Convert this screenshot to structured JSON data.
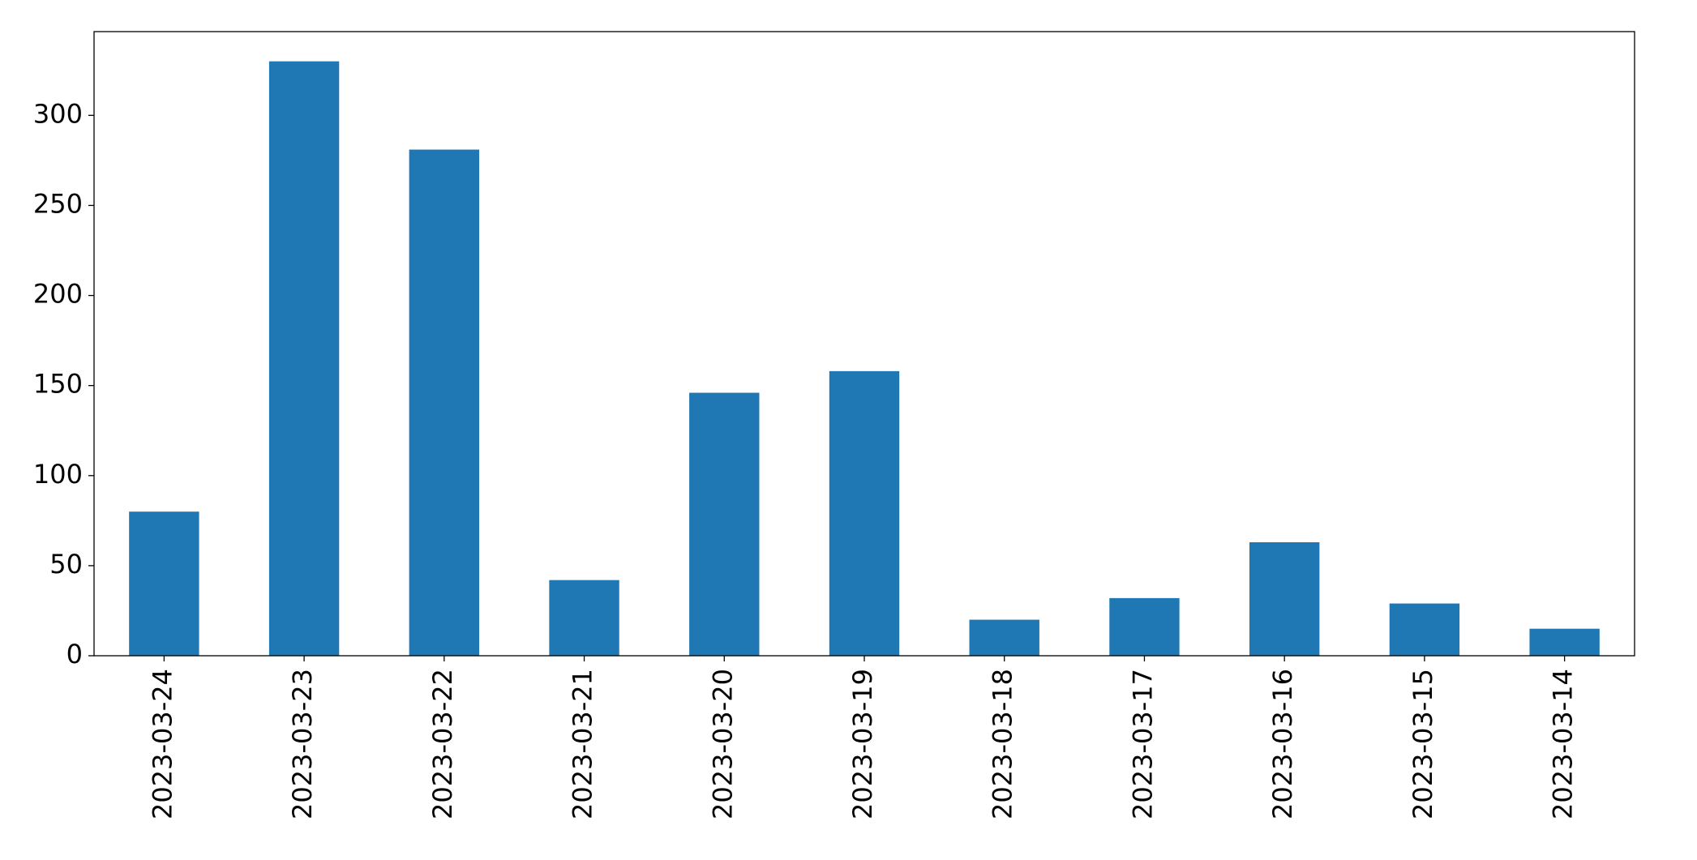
{
  "chart_data": {
    "type": "bar",
    "categories": [
      "2023-03-24",
      "2023-03-23",
      "2023-03-22",
      "2023-03-21",
      "2023-03-20",
      "2023-03-19",
      "2023-03-18",
      "2023-03-17",
      "2023-03-16",
      "2023-03-15",
      "2023-03-14"
    ],
    "values": [
      80,
      330,
      281,
      42,
      146,
      158,
      20,
      32,
      63,
      29,
      15
    ],
    "color": "#1f77b4",
    "ylim": [
      0,
      346.5
    ],
    "yticks": [
      0,
      50,
      100,
      150,
      200,
      250,
      300
    ],
    "grid": false
  }
}
